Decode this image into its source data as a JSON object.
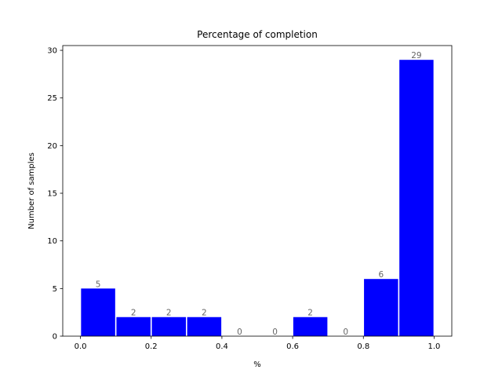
{
  "chart_data": {
    "type": "bar",
    "title": "Percentage of completion",
    "xlabel": "%",
    "ylabel": "Number of samples",
    "bins": [
      {
        "start": 0.0,
        "end": 0.1,
        "value": 5
      },
      {
        "start": 0.1,
        "end": 0.2,
        "value": 2
      },
      {
        "start": 0.2,
        "end": 0.3,
        "value": 2
      },
      {
        "start": 0.3,
        "end": 0.4,
        "value": 2
      },
      {
        "start": 0.4,
        "end": 0.5,
        "value": 0
      },
      {
        "start": 0.5,
        "end": 0.6,
        "value": 0
      },
      {
        "start": 0.6,
        "end": 0.7,
        "value": 2
      },
      {
        "start": 0.7,
        "end": 0.8,
        "value": 0
      },
      {
        "start": 0.8,
        "end": 0.9,
        "value": 6
      },
      {
        "start": 0.9,
        "end": 1.0,
        "value": 29
      }
    ],
    "xlim": [
      -0.05,
      1.05
    ],
    "ylim": [
      0,
      30.5
    ],
    "xticks": [
      0.0,
      0.2,
      0.4,
      0.6,
      0.8,
      1.0
    ],
    "xtick_labels": [
      "0.0",
      "0.2",
      "0.4",
      "0.6",
      "0.8",
      "1.0"
    ],
    "yticks": [
      0,
      5,
      10,
      15,
      20,
      25,
      30
    ],
    "ytick_labels": [
      "0",
      "5",
      "10",
      "15",
      "20",
      "25",
      "30"
    ],
    "bar_color": "#0000ff",
    "label_color": "#666666",
    "grid": false,
    "legend": false
  }
}
